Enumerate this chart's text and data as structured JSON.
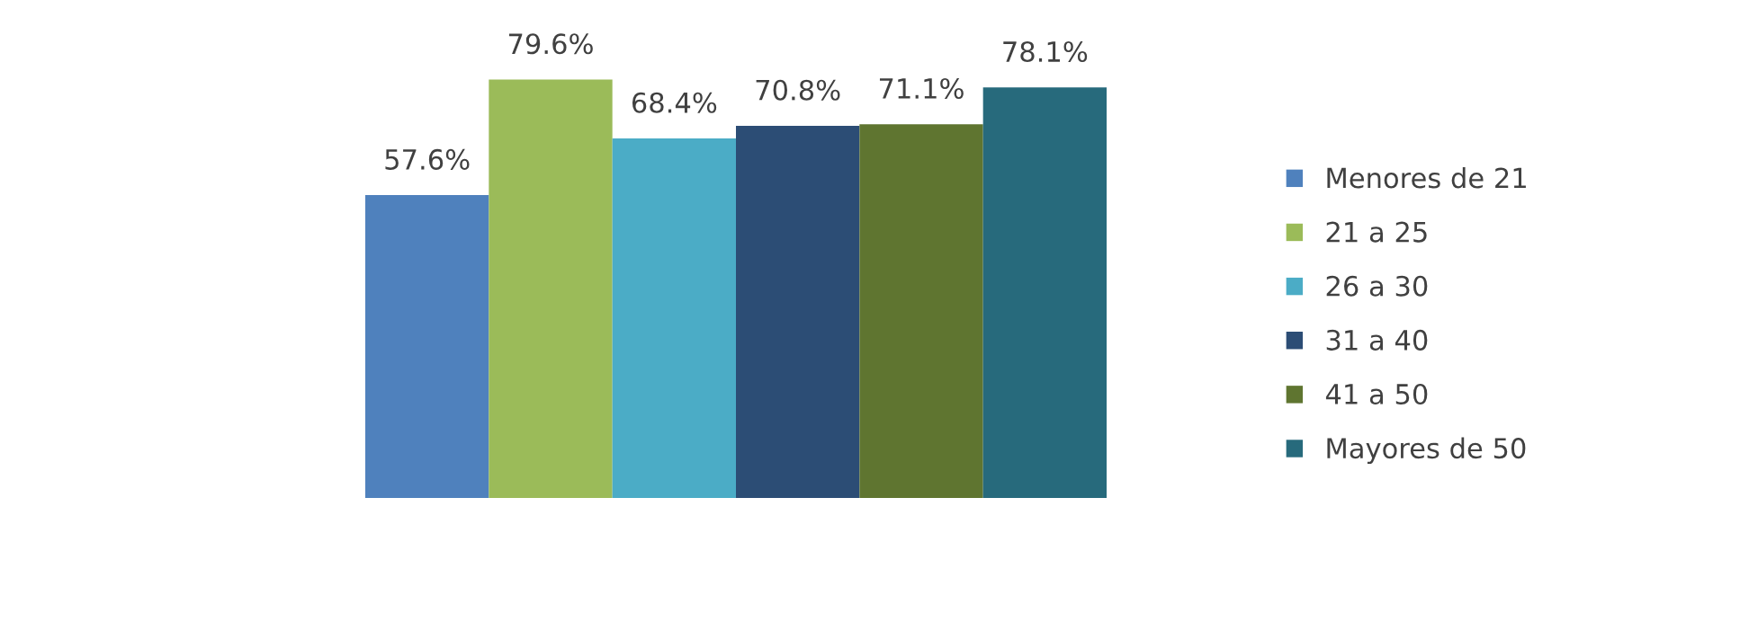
{
  "chart_data": {
    "type": "bar",
    "categories": [
      null
    ],
    "series": [
      {
        "name": "Menores de 21",
        "color": "#4f81bd",
        "values": [
          57.6
        ],
        "value_labels": [
          "57.6%"
        ]
      },
      {
        "name": "21 a 25",
        "color": "#9bbb59",
        "values": [
          79.6
        ],
        "value_labels": [
          "79.6%"
        ]
      },
      {
        "name": "26 a 30",
        "color": "#4bacc6",
        "values": [
          68.4
        ],
        "value_labels": [
          "68.4%"
        ]
      },
      {
        "name": "31 a 40",
        "color": "#2c4d75",
        "values": [
          70.8
        ],
        "value_labels": [
          "70.8%"
        ]
      },
      {
        "name": "41 a 50",
        "color": "#5f7530",
        "values": [
          71.1
        ],
        "value_labels": [
          "71.1%"
        ]
      },
      {
        "name": "Mayores de 50",
        "color": "#276a7c",
        "values": [
          78.1
        ],
        "value_labels": [
          "78.1%"
        ]
      }
    ],
    "legend": "right",
    "grid": false,
    "tick_labels": false
  }
}
